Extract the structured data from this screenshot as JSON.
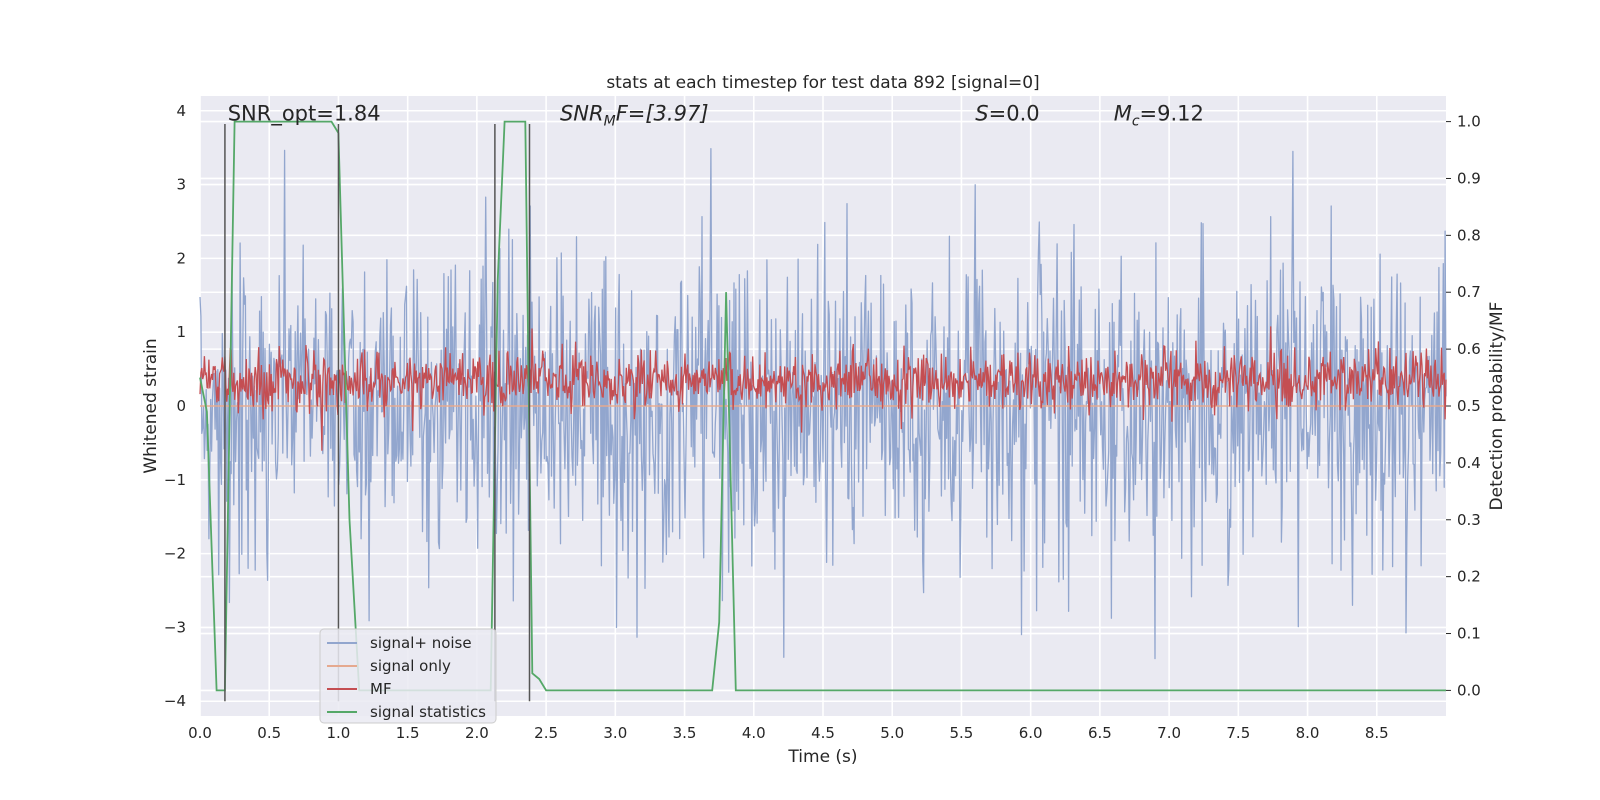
{
  "chart_data": {
    "type": "line",
    "title": "stats at each timestep for test data 892 [signal=0]",
    "xlabel": "Time (s)",
    "ylabel_left": "Whitened strain",
    "ylabel_right": "Detection probability/MF",
    "xlim": [
      0.0,
      9.0
    ],
    "ylim_left": [
      -4.2,
      4.2
    ],
    "ylim_right": [
      -0.045,
      1.045
    ],
    "x_ticks": [
      "0.0",
      "0.5",
      "1.0",
      "1.5",
      "2.0",
      "2.5",
      "3.0",
      "3.5",
      "4.0",
      "4.5",
      "5.0",
      "5.5",
      "6.0",
      "6.5",
      "7.0",
      "7.5",
      "8.0",
      "8.5"
    ],
    "y_ticks_left": [
      "4",
      "3",
      "2",
      "1",
      "0",
      "−1",
      "−2",
      "−3",
      "−4"
    ],
    "y_ticks_right": [
      "1.0",
      "0.9",
      "0.8",
      "0.7",
      "0.6",
      "0.5",
      "0.4",
      "0.3",
      "0.2",
      "0.1",
      "0.0"
    ],
    "grid": true,
    "background_color": "#eaeaf2",
    "annotations": [
      {
        "base": "SNR_opt=1.84",
        "sub": "",
        "tail": "",
        "italic": false,
        "x": 0.2,
        "y": 3.95
      },
      {
        "base": "SNR",
        "sub": "M",
        "tail": "F=[3.97]",
        "italic": true,
        "x": 2.6,
        "y": 3.95
      },
      {
        "base": "S",
        "sub": "",
        "tail": "=0.0",
        "italic": true,
        "x": 5.6,
        "y": 3.95
      },
      {
        "base": "M",
        "sub": "c",
        "tail": "=9.12",
        "italic": true,
        "x": 6.6,
        "y": 3.95
      }
    ],
    "vertical_markers": {
      "x": [
        0.18,
        1.0,
        2.13,
        2.38
      ],
      "y_range": [
        -4.0,
        3.82
      ],
      "color": "#555555"
    },
    "series": [
      {
        "name": "signal+ noise",
        "color": "#92a6ce",
        "axis": "left",
        "type": "dense_noise",
        "noise_std": 1.0,
        "y_min_observed": -3.7,
        "y_max_observed": 3.82
      },
      {
        "name": "signal only",
        "color": "#e5a98f",
        "axis": "left",
        "type": "line",
        "x": [
          0.0,
          9.0
        ],
        "y": [
          0.0,
          0.0
        ]
      },
      {
        "name": "MF",
        "color": "#c44e52",
        "axis": "right",
        "type": "dense_band",
        "center": 0.545,
        "spread": 0.035,
        "y_max_observed": 0.64
      },
      {
        "name": "signal statistics",
        "color": "#55a868",
        "axis": "right",
        "type": "line",
        "x": [
          0.0,
          0.05,
          0.12,
          0.18,
          0.25,
          0.95,
          1.0,
          1.08,
          1.15,
          2.1,
          2.15,
          2.2,
          2.35,
          2.4,
          2.45,
          2.5,
          3.7,
          3.75,
          3.8,
          3.87,
          3.95,
          9.0
        ],
        "y": [
          0.55,
          0.49,
          0.0,
          0.0,
          1.0,
          1.0,
          0.98,
          0.3,
          0.0,
          0.0,
          0.72,
          1.0,
          1.0,
          0.03,
          0.02,
          0.0,
          0.0,
          0.12,
          0.7,
          0.0,
          0.0,
          0.0
        ]
      }
    ],
    "legend": {
      "location": "lower-left",
      "entries": [
        "signal+ noise",
        "signal only",
        "MF",
        "signal statistics"
      ]
    }
  }
}
